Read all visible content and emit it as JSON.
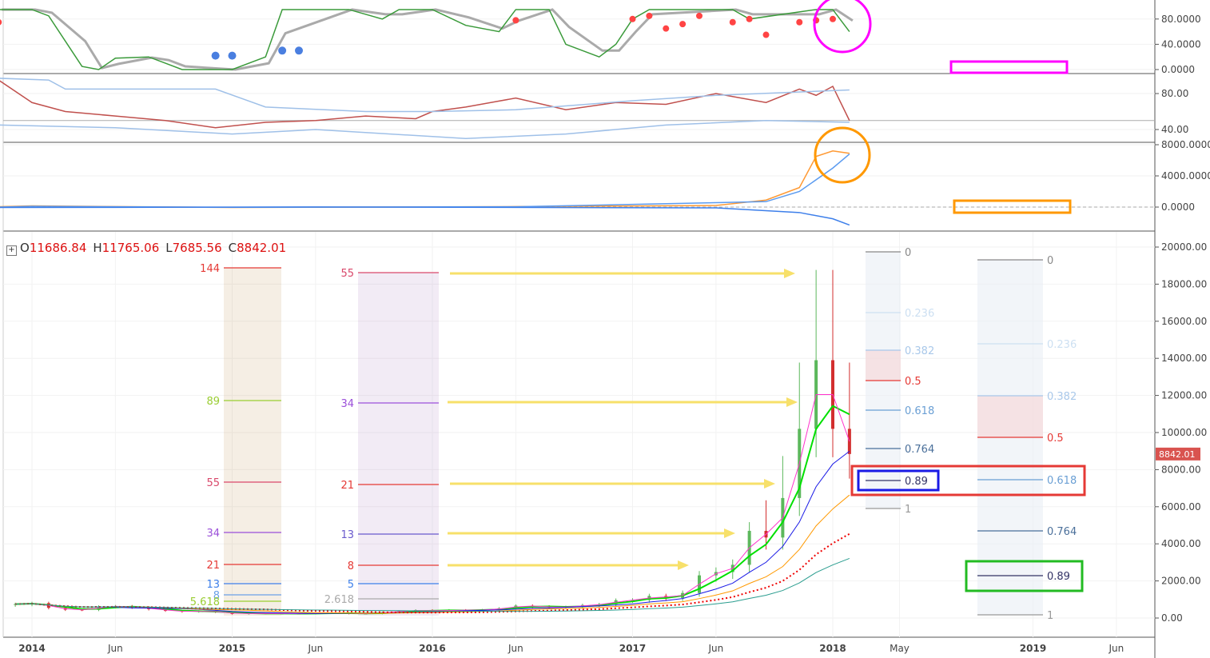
{
  "ohlc": {
    "o_label": "O",
    "o": "11686.84",
    "h_label": "H",
    "h": "11765.06",
    "l_label": "L",
    "l": "7685.56",
    "c_label": "C",
    "c": "8842.01"
  },
  "colors": {
    "up": "#5cb85c",
    "down": "#d32f2f",
    "annotation_magenta": "#ff00ff",
    "annotation_orange": "#ff9800",
    "annotation_red": "#e53935",
    "annotation_blue": "#1a1ae6",
    "annotation_green": "#22bb22",
    "arrow": "#f7e06a"
  },
  "chart_data": [
    {
      "type": "line",
      "panel": "stochastic",
      "yticks": [
        "80.0000",
        "40.0000",
        "0.0000"
      ],
      "ytick_values": [
        80,
        40,
        0
      ],
      "series": [
        {
          "values": [
            [
              "2013-11",
              95
            ],
            [
              "2014-01",
              95
            ],
            [
              "2014-02",
              85
            ],
            [
              "2014-04",
              5
            ],
            [
              "2014-05",
              0
            ],
            [
              "2014-06",
              18
            ],
            [
              "2014-08",
              20
            ],
            [
              "2014-09",
              10
            ],
            [
              "2014-10",
              0
            ],
            [
              "2015-01",
              0
            ],
            [
              "2015-03",
              20
            ],
            [
              "2015-04",
              95
            ],
            [
              "2015-08",
              95
            ],
            [
              "2015-10",
              80
            ],
            [
              "2015-11",
              95
            ],
            [
              "2016-01",
              95
            ],
            [
              "2016-03",
              70
            ],
            [
              "2016-05",
              60
            ],
            [
              "2016-06",
              95
            ],
            [
              "2016-08",
              95
            ],
            [
              "2016-09",
              40
            ],
            [
              "2016-11",
              20
            ],
            [
              "2016-12",
              40
            ],
            [
              "2017-01",
              80
            ],
            [
              "2017-02",
              95
            ],
            [
              "2017-07",
              95
            ],
            [
              "2017-08",
              80
            ],
            [
              "2017-12",
              95
            ],
            [
              "2018-01",
              95
            ],
            [
              "2018-02",
              60
            ]
          ]
        }
      ],
      "markers_blue": [
        [
          "2014-12",
          22
        ],
        [
          "2015-01",
          22
        ],
        [
          "2015-04",
          30
        ],
        [
          "2015-05",
          30
        ]
      ],
      "markers_red": [
        [
          "2013-11",
          75
        ],
        [
          "2016-06",
          78
        ],
        [
          "2017-01",
          80
        ],
        [
          "2017-02",
          85
        ],
        [
          "2017-03",
          65
        ],
        [
          "2017-04",
          72
        ],
        [
          "2017-05",
          85
        ],
        [
          "2017-07",
          75
        ],
        [
          "2017-08",
          80
        ],
        [
          "2017-09",
          55
        ],
        [
          "2017-11",
          75
        ],
        [
          "2017-12",
          78
        ],
        [
          "2018-01",
          80
        ]
      ]
    },
    {
      "type": "line",
      "panel": "rsi",
      "yticks": [
        "80.00",
        "40.00"
      ],
      "ytick_values": [
        80,
        40
      ],
      "level": 50,
      "series": [
        {
          "color": "#c0504d",
          "values": [
            [
              "2013-11",
              95
            ],
            [
              "2014-01",
              70
            ],
            [
              "2014-03",
              60
            ],
            [
              "2014-06",
              55
            ],
            [
              "2014-09",
              50
            ],
            [
              "2014-12",
              42
            ],
            [
              "2015-03",
              48
            ],
            [
              "2015-06",
              50
            ],
            [
              "2015-09",
              55
            ],
            [
              "2015-12",
              52
            ],
            [
              "2016-01",
              60
            ],
            [
              "2016-03",
              65
            ],
            [
              "2016-06",
              75
            ],
            [
              "2016-09",
              62
            ],
            [
              "2016-12",
              70
            ],
            [
              "2017-03",
              68
            ],
            [
              "2017-06",
              80
            ],
            [
              "2017-09",
              70
            ],
            [
              "2017-11",
              85
            ],
            [
              "2017-12",
              78
            ],
            [
              "2018-01",
              88
            ],
            [
              "2018-02",
              50
            ]
          ]
        },
        {
          "color": "#9fc0e8",
          "values": [
            [
              "2013-11",
              97
            ],
            [
              "2014-02",
              95
            ],
            [
              "2014-03",
              85
            ],
            [
              "2014-12",
              85
            ],
            [
              "2015-03",
              65
            ],
            [
              "2015-09",
              60
            ],
            [
              "2016-01",
              60
            ],
            [
              "2016-06",
              62
            ],
            [
              "2017-01",
              72
            ],
            [
              "2017-06",
              78
            ],
            [
              "2018-02",
              84
            ]
          ]
        },
        {
          "color": "#9fc0e8",
          "values": [
            [
              "2013-11",
              45
            ],
            [
              "2014-06",
              42
            ],
            [
              "2015-01",
              35
            ],
            [
              "2015-06",
              40
            ],
            [
              "2016-03",
              30
            ],
            [
              "2016-09",
              35
            ],
            [
              "2017-03",
              45
            ],
            [
              "2017-09",
              50
            ],
            [
              "2018-02",
              48
            ]
          ]
        }
      ]
    },
    {
      "type": "line",
      "panel": "macd",
      "yticks": [
        "8000.0000",
        "4000.0000",
        "0.0000"
      ],
      "ytick_values": [
        8000,
        4000,
        0
      ],
      "series": [
        {
          "color": "#ff9933",
          "values": [
            [
              "2013-11",
              50
            ],
            [
              "2014-01",
              150
            ],
            [
              "2015-01",
              -50
            ],
            [
              "2016-06",
              60
            ],
            [
              "2017-06",
              200
            ],
            [
              "2017-09",
              900
            ],
            [
              "2017-11",
              2500
            ],
            [
              "2017-12",
              6500
            ],
            [
              "2018-01",
              7200
            ],
            [
              "2018-02",
              6900
            ]
          ]
        },
        {
          "color": "#5b9bf0",
          "values": [
            [
              "2013-11",
              0
            ],
            [
              "2014-01",
              100
            ],
            [
              "2015-01",
              -30
            ],
            [
              "2016-06",
              40
            ],
            [
              "2017-09",
              700
            ],
            [
              "2017-11",
              2000
            ],
            [
              "2018-01",
              5000
            ],
            [
              "2018-02",
              6800
            ]
          ]
        },
        {
          "color": "#3d7fea",
          "values": [
            [
              "2013-11",
              -50
            ],
            [
              "2014-06",
              -40
            ],
            [
              "2015-06",
              10
            ],
            [
              "2017-06",
              -100
            ],
            [
              "2017-11",
              -700
            ],
            [
              "2018-01",
              -1500
            ],
            [
              "2018-02",
              -2300
            ]
          ]
        }
      ]
    },
    {
      "type": "candlestick",
      "panel": "price",
      "yticks": [
        "20000.00",
        "18000.00",
        "16000.00",
        "14000.00",
        "12000.00",
        "10000.00",
        "8000.00",
        "6000.00",
        "4000.00",
        "2000.00",
        "0.00"
      ],
      "ytick_values": [
        20000,
        18000,
        16000,
        14000,
        12000,
        10000,
        8000,
        6000,
        4000,
        2000,
        0
      ],
      "last_price": "8842.01",
      "start": "2013-12",
      "closes": [
        750,
        800,
        550,
        450,
        440,
        620,
        640,
        580,
        480,
        390,
        340,
        380,
        320,
        220,
        255,
        245,
        235,
        230,
        265,
        285,
        230,
        236,
        315,
        377,
        430,
        370,
        437,
        416,
        448,
        530,
        670,
        624,
        575,
        608,
        700,
        745,
        960,
        970,
        1190,
        1080,
        1350,
        2300,
        2480,
        2870,
        4700,
        4340,
        6470,
        10200,
        13900,
        10200,
        8842
      ],
      "xticks": [
        [
          "2014",
          "2014-01",
          true
        ],
        [
          "Jun",
          "2014-06",
          false
        ],
        [
          "2015",
          "2015-01",
          true
        ],
        [
          "Jun",
          "2015-06",
          false
        ],
        [
          "2016",
          "2016-01",
          true
        ],
        [
          "Jun",
          "2016-06",
          false
        ],
        [
          "2017",
          "2017-01",
          true
        ],
        [
          "Jun",
          "2017-06",
          false
        ],
        [
          "2018",
          "2018-01",
          true
        ],
        [
          "May",
          "2018-05",
          false
        ],
        [
          "2019",
          "2019-01",
          true
        ],
        [
          "Jun",
          "2019-06",
          false
        ]
      ]
    }
  ],
  "fib_time_zones": [
    {
      "levels": [
        [
          "144",
          335,
          "#e53935"
        ],
        [
          "89",
          501,
          "#9acd32"
        ],
        [
          "55",
          603,
          "#d9486b"
        ],
        [
          "34",
          666,
          "#9b4fd9"
        ],
        [
          "21",
          706,
          "#e53935"
        ],
        [
          "13",
          730,
          "#3d7fea"
        ],
        [
          "8",
          744,
          "#6aa0e8"
        ],
        [
          "5.618",
          752,
          "#9acd32"
        ]
      ]
    },
    {
      "levels": [
        [
          "55",
          341,
          "#d9486b"
        ],
        [
          "34",
          504,
          "#9b4fd9"
        ],
        [
          "21",
          606,
          "#e53935"
        ],
        [
          "13",
          668,
          "#6a5acd"
        ],
        [
          "8",
          707,
          "#e53935"
        ],
        [
          "5",
          730,
          "#3d7fea"
        ],
        [
          "2.618",
          749,
          "#aaaaaa"
        ]
      ]
    }
  ],
  "fib_retracements": [
    {
      "levels": [
        [
          "0",
          315,
          "#888"
        ],
        [
          "0.236",
          391,
          "#cde0f2"
        ],
        [
          "0.382",
          438,
          "#a9c8ea"
        ],
        [
          "0.5",
          476,
          "#e53935"
        ],
        [
          "0.618",
          513,
          "#6a9fd4"
        ],
        [
          "0.764",
          561,
          "#4a6f9a"
        ],
        [
          "0.89",
          601,
          "#333366"
        ],
        [
          "1",
          636,
          "#999"
        ]
      ]
    },
    {
      "levels": [
        [
          "0",
          325,
          "#888"
        ],
        [
          "0.236",
          430,
          "#cde0f2"
        ],
        [
          "0.382",
          495,
          "#a9c8ea"
        ],
        [
          "0.5",
          547,
          "#e53935"
        ],
        [
          "0.618",
          600,
          "#6a9fd4"
        ],
        [
          "0.764",
          664,
          "#4a6f9a"
        ],
        [
          "0.89",
          720,
          "#333366"
        ],
        [
          "1",
          769,
          "#999"
        ]
      ]
    }
  ]
}
